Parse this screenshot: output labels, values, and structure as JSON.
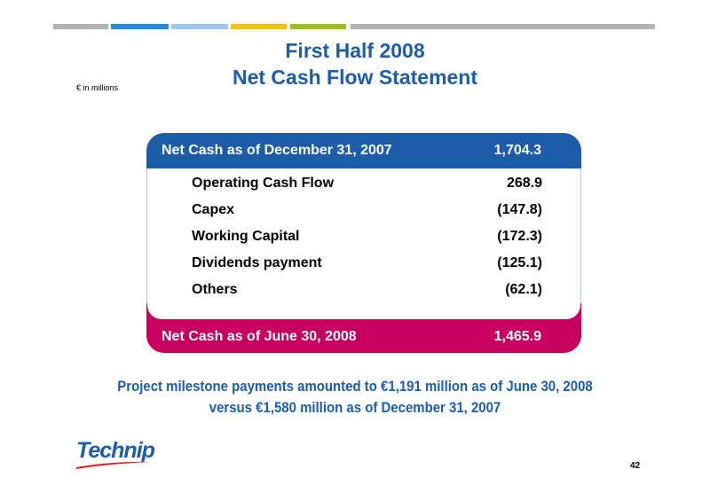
{
  "header": {
    "title_lines": [
      "First Half 2008",
      "Net Cash Flow Statement"
    ],
    "unit_note": "€ in millions"
  },
  "table": {
    "opening": {
      "label": "Net Cash as of December 31, 2007",
      "value": "1,704.3"
    },
    "rows": [
      [
        "Operating Cash Flow",
        "268.9"
      ],
      [
        "Capex",
        "(147.8)"
      ],
      [
        "Working Capital",
        "(172.3)"
      ],
      [
        "Dividends payment",
        "(125.1)"
      ],
      [
        "Others",
        "(62.1)"
      ]
    ],
    "closing": {
      "label": "Net Cash as of June 30, 2008",
      "value": "1,465.9"
    }
  },
  "footnote_lines": [
    "Project milestone payments amounted to €1,191 million as of June 30, 2008",
    "versus €1,580 million as of December 31, 2007"
  ],
  "logo": "Technip",
  "page_number": "42"
}
